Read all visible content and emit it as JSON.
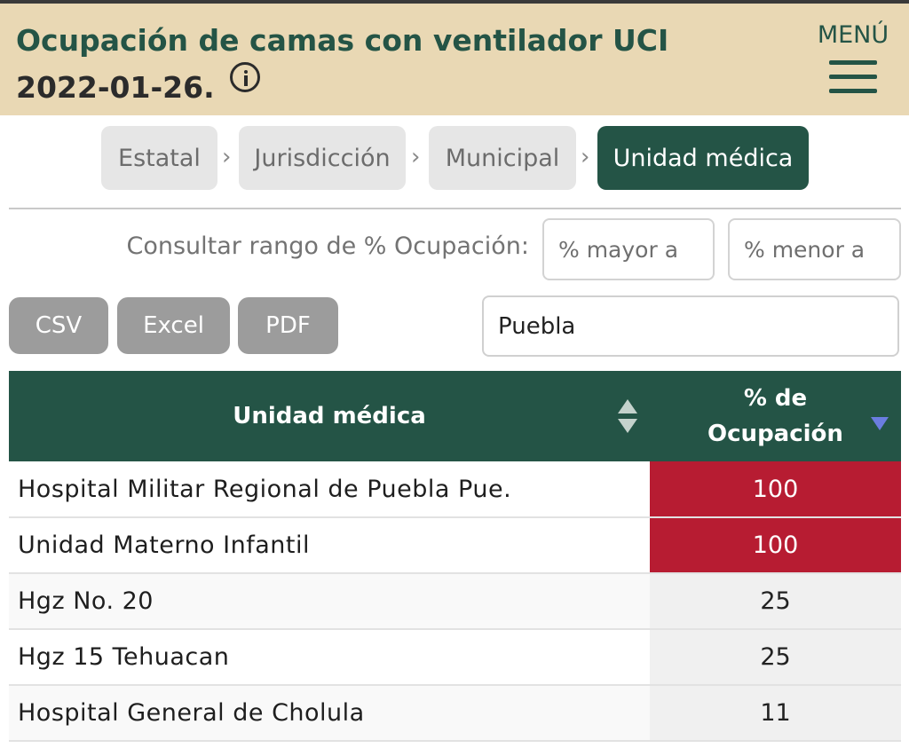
{
  "header": {
    "title": "Ocupación de camas con ventilador UCI",
    "date": "2022-01-26.",
    "menu_label": "MENÚ",
    "info_icon": "info-icon",
    "menu_icon": "hamburger-menu-icon"
  },
  "breadcrumbs": {
    "items": [
      "Estatal",
      "Jurisdicción",
      "Municipal",
      "Unidad médica"
    ],
    "active": "Unidad médica",
    "separator": "›"
  },
  "filters": {
    "range_label": "Consultar rango de % Ocupación:",
    "min_placeholder": "% mayor a",
    "max_placeholder": "% menor a",
    "search_value": "Puebla"
  },
  "export": {
    "csv": "CSV",
    "excel": "Excel",
    "pdf": "PDF"
  },
  "table": {
    "columns": [
      "Unidad médica",
      "% de Ocupación"
    ],
    "rows": [
      {
        "name": "Hospital Militar Regional de Puebla Pue.",
        "pct": "100",
        "status": "critical"
      },
      {
        "name": "Unidad Materno Infantil",
        "pct": "100",
        "status": "critical"
      },
      {
        "name": "Hgz No. 20",
        "pct": "25",
        "status": "normal"
      },
      {
        "name": "Hgz 15 Tehuacan",
        "pct": "25",
        "status": "normal"
      },
      {
        "name": "Hospital General de Cholula",
        "pct": "11",
        "status": "normal"
      }
    ]
  },
  "colors": {
    "header_bg": "#e9d8b4",
    "brand_green": "#245446",
    "critical_red": "#b71c32",
    "button_gray": "#9c9c9c"
  }
}
